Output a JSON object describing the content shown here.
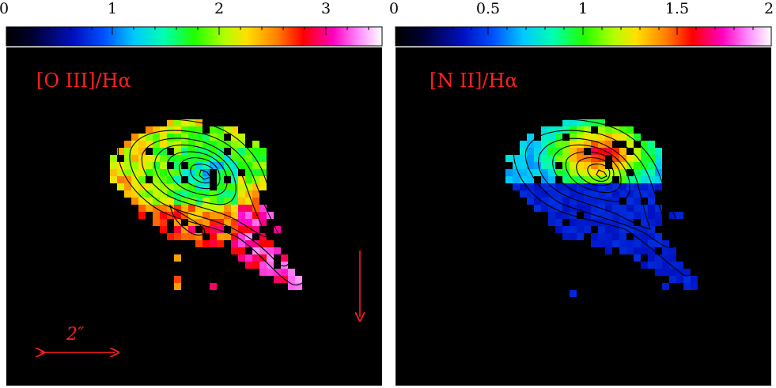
{
  "panels": [
    {
      "id": "oiii",
      "label": "[O III]/Hα",
      "colorbar": {
        "ticks": [
          "0",
          "1",
          "2",
          "3"
        ],
        "min": 0,
        "max": 3.3
      },
      "annotations": {
        "scale_label": "2″",
        "has_scale_bar": true,
        "has_north_arrow": true
      }
    },
    {
      "id": "nii",
      "label": "[N II]/Hα",
      "colorbar": {
        "ticks": [
          "0",
          "0.5",
          "1",
          "1.5",
          "2"
        ],
        "min": 0,
        "max": 2
      },
      "annotations": {
        "has_scale_bar": false,
        "has_north_arrow": false
      }
    }
  ],
  "colors": {
    "background": "#000000",
    "label": "#ff2020",
    "contour": "#000000"
  }
}
